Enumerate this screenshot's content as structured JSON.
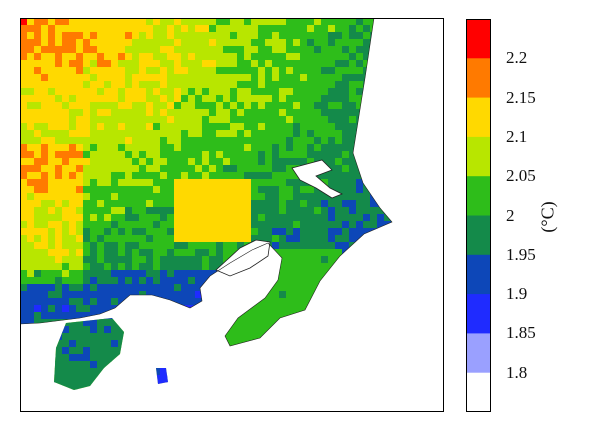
{
  "colorbar": {
    "unit_label": "(°C)",
    "levels": [
      {
        "label": "2.2",
        "color": "#ff0000"
      },
      {
        "label": "2.15",
        "color": "#ff7a00"
      },
      {
        "label": "2.1",
        "color": "#ffd900"
      },
      {
        "label": "2.05",
        "color": "#b8e600"
      },
      {
        "label": "2",
        "color": "#2ebd1a"
      },
      {
        "label": "1.95",
        "color": "#148a4a"
      },
      {
        "label": "1.9",
        "color": "#0d47b8"
      },
      {
        "label": "1.85",
        "color": "#1f2bff"
      },
      {
        "label": "1.8",
        "color": "#9aa0ff"
      }
    ],
    "bottom_color": "#ffffff"
  },
  "map": {
    "sea_color": "#ffffff",
    "coastline_color": "#222222"
  }
}
